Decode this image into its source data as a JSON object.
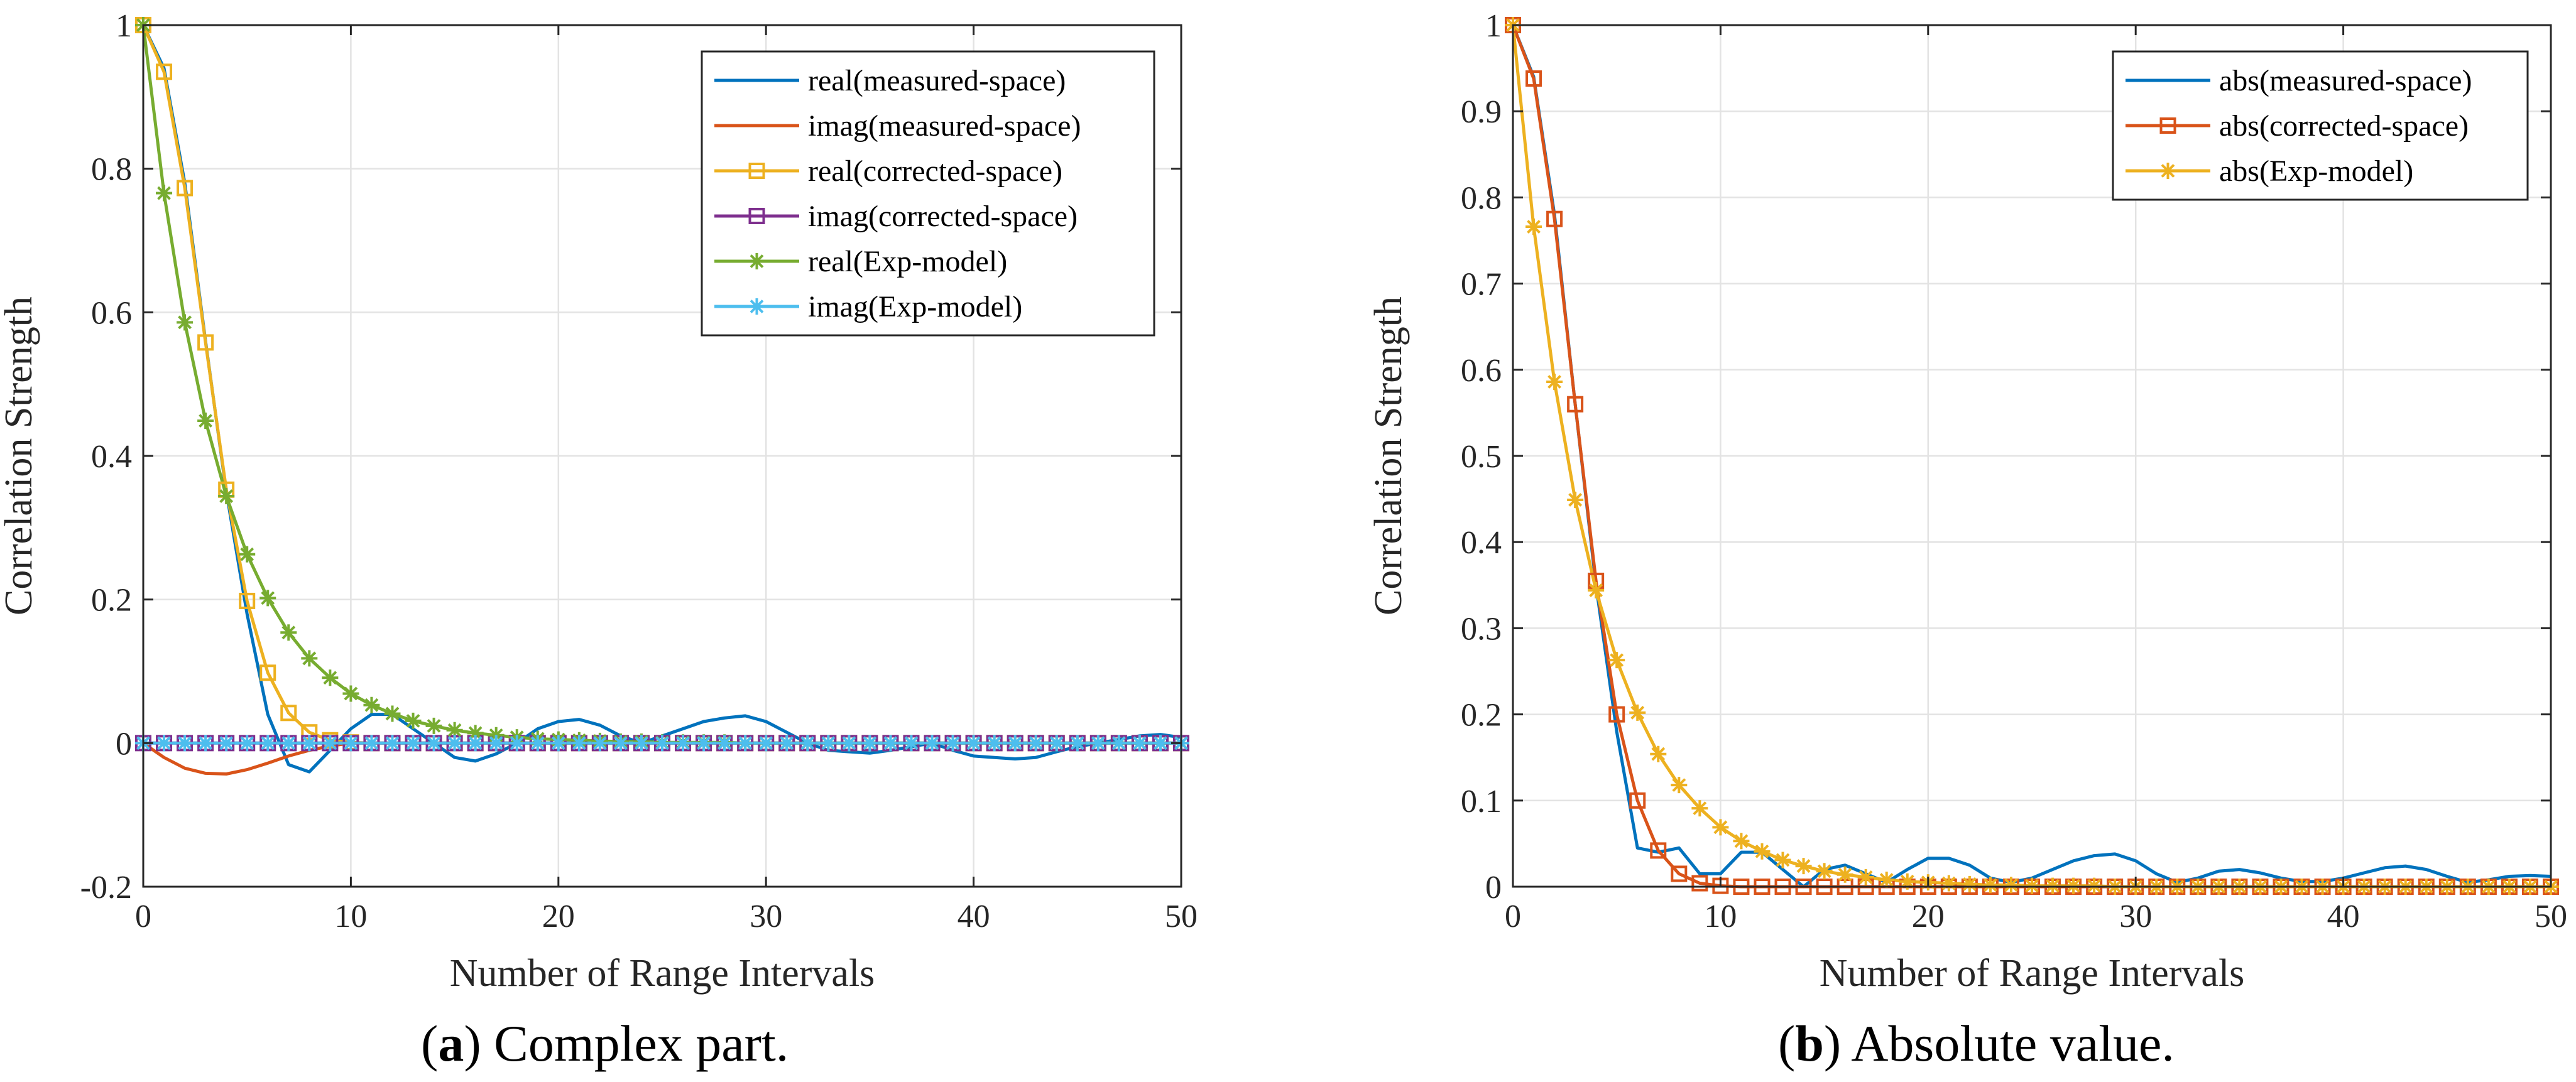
{
  "colors": {
    "blue": "#0072BD",
    "orange": "#D95319",
    "yellow": "#EDB120",
    "purple": "#7E2F8E",
    "green": "#77AC30",
    "cyan": "#4DBEEE",
    "grid": "#e3e3e3",
    "axis": "#262626"
  },
  "captions": [
    {
      "letter": "a",
      "open": "(",
      "close": ")",
      "text": " Complex part."
    },
    {
      "letter": "b",
      "open": "(",
      "close": ")",
      "text": " Absolute value."
    }
  ],
  "chart_data": [
    {
      "type": "line",
      "title": "",
      "xlabel": "Number of Range Intervals",
      "ylabel": "Correlation Strength",
      "xlim": [
        0,
        50
      ],
      "ylim": [
        -0.2,
        1
      ],
      "xticks": [
        0,
        10,
        20,
        30,
        40,
        50
      ],
      "xtick_labels": [
        "0",
        "10",
        "20",
        "30",
        "40",
        "50"
      ],
      "yticks": [
        -0.2,
        0,
        0.2,
        0.4,
        0.6,
        0.8,
        1
      ],
      "ytick_labels": [
        "-0.2",
        "0",
        "0.2",
        "0.4",
        "0.6",
        "0.8",
        "1"
      ],
      "grid": true,
      "legend_position": "top-right",
      "series": [
        {
          "name": "real(measured-space)",
          "color": "#0072BD",
          "marker": "none",
          "x": [
            0,
            1,
            2,
            3,
            4,
            5,
            6,
            7,
            8,
            9,
            10,
            11,
            12,
            13,
            14,
            15,
            16,
            17,
            18,
            19,
            20,
            21,
            22,
            23,
            24,
            25,
            26,
            27,
            28,
            29,
            30,
            31,
            32,
            33,
            34,
            35,
            36,
            37,
            38,
            39,
            40,
            41,
            42,
            43,
            44,
            45,
            46,
            47,
            48,
            49,
            50
          ],
          "y": [
            1,
            0.94,
            0.78,
            0.56,
            0.35,
            0.18,
            0.04,
            -0.03,
            -0.04,
            -0.01,
            0.02,
            0.04,
            0.04,
            0.02,
            0,
            -0.02,
            -0.025,
            -0.015,
            0,
            0.02,
            0.03,
            0.033,
            0.025,
            0.01,
            0,
            0.01,
            0.02,
            0.03,
            0.035,
            0.038,
            0.03,
            0.015,
            0,
            -0.01,
            -0.012,
            -0.014,
            -0.01,
            -0.005,
            0,
            -0.01,
            -0.018,
            -0.02,
            -0.022,
            -0.02,
            -0.012,
            -0.005,
            0,
            0.005,
            0.01,
            0.012,
            0.008
          ]
        },
        {
          "name": "imag(measured-space)",
          "color": "#D95319",
          "marker": "none",
          "x": [
            0,
            1,
            2,
            3,
            4,
            5,
            6,
            7,
            8,
            9,
            10,
            11,
            12,
            13,
            14,
            15,
            16,
            17,
            18,
            19,
            20,
            21,
            22,
            23,
            24,
            25,
            26,
            27,
            28,
            29,
            30,
            31,
            32,
            33,
            34,
            35,
            36,
            37,
            38,
            39,
            40,
            41,
            42,
            43,
            44,
            45,
            46,
            47,
            48,
            49,
            50
          ],
          "y": [
            0,
            -0.02,
            -0.035,
            -0.042,
            -0.043,
            -0.037,
            -0.028,
            -0.018,
            -0.01,
            -0.004,
            0,
            0,
            0,
            0,
            0,
            0,
            0,
            0,
            0,
            0,
            0,
            0,
            0,
            0,
            0,
            0,
            0,
            0,
            0,
            0,
            0,
            0,
            0,
            0,
            0,
            0,
            0,
            0,
            0,
            0,
            0,
            0,
            0,
            0,
            0,
            0,
            0,
            0,
            0,
            0,
            0
          ]
        },
        {
          "name": "real(corrected-space)",
          "color": "#EDB120",
          "marker": "square",
          "x": [
            0,
            1,
            2,
            3,
            4,
            5,
            6,
            7,
            8,
            9,
            10,
            11,
            12,
            13,
            14,
            15,
            16,
            17,
            18,
            19,
            20,
            21,
            22,
            23,
            24,
            25,
            26,
            27,
            28,
            29,
            30,
            31,
            32,
            33,
            34,
            35,
            36,
            37,
            38,
            39,
            40,
            41,
            42,
            43,
            44,
            45,
            46,
            47,
            48,
            49,
            50
          ],
          "y": [
            1,
            0.935,
            0.773,
            0.558,
            0.353,
            0.198,
            0.098,
            0.042,
            0.015,
            0.004,
            0.001,
            0,
            0,
            0,
            0,
            0,
            0,
            0,
            0,
            0,
            0,
            0,
            0,
            0,
            0,
            0,
            0,
            0,
            0,
            0,
            0,
            0,
            0,
            0,
            0,
            0,
            0,
            0,
            0,
            0,
            0,
            0,
            0,
            0,
            0,
            0,
            0,
            0,
            0,
            0,
            0
          ]
        },
        {
          "name": "imag(corrected-space)",
          "color": "#7E2F8E",
          "marker": "square",
          "x": [
            0,
            1,
            2,
            3,
            4,
            5,
            6,
            7,
            8,
            9,
            10,
            11,
            12,
            13,
            14,
            15,
            16,
            17,
            18,
            19,
            20,
            21,
            22,
            23,
            24,
            25,
            26,
            27,
            28,
            29,
            30,
            31,
            32,
            33,
            34,
            35,
            36,
            37,
            38,
            39,
            40,
            41,
            42,
            43,
            44,
            45,
            46,
            47,
            48,
            49,
            50
          ],
          "y": [
            0,
            0,
            0,
            0,
            0,
            0,
            0,
            0,
            0,
            0,
            0,
            0,
            0,
            0,
            0,
            0,
            0,
            0,
            0,
            0,
            0,
            0,
            0,
            0,
            0,
            0,
            0,
            0,
            0,
            0,
            0,
            0,
            0,
            0,
            0,
            0,
            0,
            0,
            0,
            0,
            0,
            0,
            0,
            0,
            0,
            0,
            0,
            0,
            0,
            0,
            0
          ]
        },
        {
          "name": "real(Exp-model)",
          "color": "#77AC30",
          "marker": "star",
          "x": [
            0,
            1,
            2,
            3,
            4,
            5,
            6,
            7,
            8,
            9,
            10,
            11,
            12,
            13,
            14,
            15,
            16,
            17,
            18,
            19,
            20,
            21,
            22,
            23,
            24,
            25,
            26,
            27,
            28,
            29,
            30,
            31,
            32,
            33,
            34,
            35,
            36,
            37,
            38,
            39,
            40,
            41,
            42,
            43,
            44,
            45,
            46,
            47,
            48,
            49,
            50
          ],
          "y": [
            1,
            0.766,
            0.586,
            0.449,
            0.344,
            0.263,
            0.202,
            0.154,
            0.118,
            0.091,
            0.069,
            0.053,
            0.041,
            0.031,
            0.024,
            0.018,
            0.014,
            0.011,
            0.008,
            0.006,
            0.005,
            0.004,
            0.003,
            0.002,
            0.002,
            0.001,
            0.001,
            0.001,
            0.001,
            0,
            0,
            0,
            0,
            0,
            0,
            0,
            0,
            0,
            0,
            0,
            0,
            0,
            0,
            0,
            0,
            0,
            0,
            0,
            0,
            0,
            0
          ]
        },
        {
          "name": "imag(Exp-model)",
          "color": "#4DBEEE",
          "marker": "star",
          "x": [
            0,
            1,
            2,
            3,
            4,
            5,
            6,
            7,
            8,
            9,
            10,
            11,
            12,
            13,
            14,
            15,
            16,
            17,
            18,
            19,
            20,
            21,
            22,
            23,
            24,
            25,
            26,
            27,
            28,
            29,
            30,
            31,
            32,
            33,
            34,
            35,
            36,
            37,
            38,
            39,
            40,
            41,
            42,
            43,
            44,
            45,
            46,
            47,
            48,
            49,
            50
          ],
          "y": [
            0,
            0,
            0,
            0,
            0,
            0,
            0,
            0,
            0,
            0,
            0,
            0,
            0,
            0,
            0,
            0,
            0,
            0,
            0,
            0,
            0,
            0,
            0,
            0,
            0,
            0,
            0,
            0,
            0,
            0,
            0,
            0,
            0,
            0,
            0,
            0,
            0,
            0,
            0,
            0,
            0,
            0,
            0,
            0,
            0,
            0,
            0,
            0,
            0,
            0,
            0
          ]
        }
      ]
    },
    {
      "type": "line",
      "title": "",
      "xlabel": "Number of Range Intervals",
      "ylabel": "Correlation Strength",
      "xlim": [
        0,
        50
      ],
      "ylim": [
        0,
        1
      ],
      "xticks": [
        0,
        10,
        20,
        30,
        40,
        50
      ],
      "xtick_labels": [
        "0",
        "10",
        "20",
        "30",
        "40",
        "50"
      ],
      "yticks": [
        0,
        0.1,
        0.2,
        0.3,
        0.4,
        0.5,
        0.6,
        0.7,
        0.8,
        0.9,
        1
      ],
      "ytick_labels": [
        "0",
        "0.1",
        "0.2",
        "0.3",
        "0.4",
        "0.5",
        "0.6",
        "0.7",
        "0.8",
        "0.9",
        "1"
      ],
      "grid": true,
      "legend_position": "top-right",
      "series": [
        {
          "name": "abs(measured-space)",
          "color": "#0072BD",
          "marker": "none",
          "x": [
            0,
            1,
            2,
            3,
            4,
            5,
            6,
            7,
            8,
            9,
            10,
            11,
            12,
            13,
            14,
            15,
            16,
            17,
            18,
            19,
            20,
            21,
            22,
            23,
            24,
            25,
            26,
            27,
            28,
            29,
            30,
            31,
            32,
            33,
            34,
            35,
            36,
            37,
            38,
            39,
            40,
            41,
            42,
            43,
            44,
            45,
            46,
            47,
            48,
            49,
            50
          ],
          "y": [
            1,
            0.94,
            0.78,
            0.56,
            0.35,
            0.18,
            0.045,
            0.04,
            0.045,
            0.015,
            0.015,
            0.04,
            0.04,
            0.02,
            0,
            0.02,
            0.025,
            0.015,
            0.005,
            0.02,
            0.033,
            0.033,
            0.025,
            0.01,
            0.005,
            0.01,
            0.02,
            0.03,
            0.036,
            0.038,
            0.03,
            0.015,
            0.005,
            0.01,
            0.018,
            0.02,
            0.016,
            0.01,
            0.006,
            0.006,
            0.01,
            0.016,
            0.022,
            0.024,
            0.02,
            0.012,
            0.005,
            0.008,
            0.012,
            0.013,
            0.012
          ]
        },
        {
          "name": "abs(corrected-space)",
          "color": "#D95319",
          "marker": "square",
          "x": [
            0,
            1,
            2,
            3,
            4,
            5,
            6,
            7,
            8,
            9,
            10,
            11,
            12,
            13,
            14,
            15,
            16,
            17,
            18,
            19,
            20,
            21,
            22,
            23,
            24,
            25,
            26,
            27,
            28,
            29,
            30,
            31,
            32,
            33,
            34,
            35,
            36,
            37,
            38,
            39,
            40,
            41,
            42,
            43,
            44,
            45,
            46,
            47,
            48,
            49,
            50
          ],
          "y": [
            1,
            0.938,
            0.775,
            0.56,
            0.355,
            0.2,
            0.1,
            0.042,
            0.015,
            0.004,
            0.001,
            0,
            0,
            0,
            0,
            0,
            0,
            0,
            0,
            0,
            0,
            0,
            0,
            0,
            0,
            0,
            0,
            0,
            0,
            0,
            0,
            0,
            0,
            0,
            0,
            0,
            0,
            0,
            0,
            0,
            0,
            0,
            0,
            0,
            0,
            0,
            0,
            0,
            0,
            0,
            0
          ]
        },
        {
          "name": "abs(Exp-model)",
          "color": "#EDB120",
          "marker": "star",
          "x": [
            0,
            1,
            2,
            3,
            4,
            5,
            6,
            7,
            8,
            9,
            10,
            11,
            12,
            13,
            14,
            15,
            16,
            17,
            18,
            19,
            20,
            21,
            22,
            23,
            24,
            25,
            26,
            27,
            28,
            29,
            30,
            31,
            32,
            33,
            34,
            35,
            36,
            37,
            38,
            39,
            40,
            41,
            42,
            43,
            44,
            45,
            46,
            47,
            48,
            49,
            50
          ],
          "y": [
            1,
            0.766,
            0.586,
            0.449,
            0.344,
            0.263,
            0.202,
            0.154,
            0.118,
            0.091,
            0.069,
            0.053,
            0.041,
            0.031,
            0.024,
            0.018,
            0.014,
            0.011,
            0.008,
            0.006,
            0.005,
            0.004,
            0.003,
            0.002,
            0.002,
            0.001,
            0.001,
            0.001,
            0.001,
            0,
            0,
            0,
            0,
            0,
            0,
            0,
            0,
            0,
            0,
            0,
            0,
            0,
            0,
            0,
            0,
            0,
            0,
            0,
            0,
            0,
            0
          ]
        }
      ]
    }
  ]
}
